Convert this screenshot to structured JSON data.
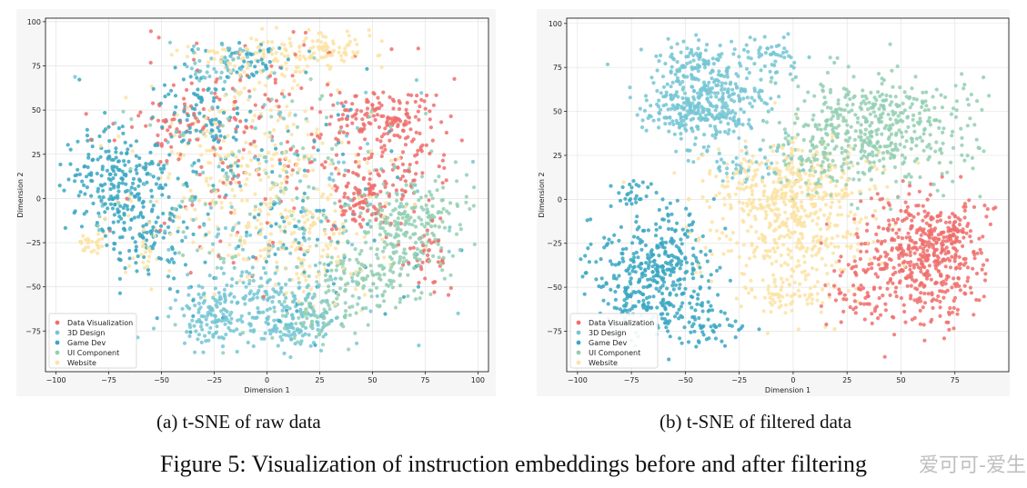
{
  "figure_caption": "Figure 5: Visualization of instruction embeddings before and after filtering",
  "watermark": "爱可可-爱生活",
  "categories": [
    {
      "name": "Data Visualization",
      "color": "#ef6f6c"
    },
    {
      "name": "3D Design",
      "color": "#74c5d3"
    },
    {
      "name": "Game Dev",
      "color": "#3aa7c2"
    },
    {
      "name": "UI Component",
      "color": "#93cfb2"
    },
    {
      "name": "Website",
      "color": "#fbe3a4"
    }
  ],
  "chart_data": [
    {
      "type": "scatter",
      "caption": "(a) t-SNE of raw data",
      "xlabel": "Dimension 1",
      "ylabel": "Dimension 2",
      "xlim": [
        -105,
        105
      ],
      "ylim": [
        -98,
        102
      ],
      "xticks": [
        -100,
        -75,
        -50,
        -25,
        0,
        25,
        50,
        75,
        100
      ],
      "yticks": [
        -75,
        -50,
        -25,
        0,
        25,
        50,
        75,
        100
      ],
      "grid": true,
      "legend": "lower-left",
      "series": [
        {
          "name": "Data Visualization",
          "clusters": [
            {
              "cx": 55,
              "cy": 45,
              "sx": 12,
              "sy": 8,
              "n": 140
            },
            {
              "cx": 45,
              "cy": 0,
              "sx": 8,
              "sy": 10,
              "n": 110
            },
            {
              "cx": 70,
              "cy": 20,
              "sx": 8,
              "sy": 10,
              "n": 50
            },
            {
              "cx": -40,
              "cy": 45,
              "sx": 8,
              "sy": 8,
              "n": 40
            },
            {
              "cx": 0,
              "cy": 35,
              "sx": 35,
              "sy": 35,
              "n": 200
            },
            {
              "cx": 75,
              "cy": -35,
              "sx": 6,
              "sy": 10,
              "n": 40
            }
          ]
        },
        {
          "name": "3D Design",
          "clusters": [
            {
              "cx": 0,
              "cy": -60,
              "sx": 20,
              "sy": 10,
              "n": 200
            },
            {
              "cx": -25,
              "cy": -70,
              "sx": 10,
              "sy": 8,
              "n": 80
            },
            {
              "cx": 15,
              "cy": -75,
              "sx": 8,
              "sy": 6,
              "n": 60
            },
            {
              "cx": -20,
              "cy": 75,
              "sx": 10,
              "sy": 8,
              "n": 50
            },
            {
              "cx": 0,
              "cy": 0,
              "sx": 40,
              "sy": 40,
              "n": 150
            }
          ]
        },
        {
          "name": "Game Dev",
          "clusters": [
            {
              "cx": -70,
              "cy": 10,
              "sx": 14,
              "sy": 14,
              "n": 220
            },
            {
              "cx": -60,
              "cy": -20,
              "sx": 12,
              "sy": 12,
              "n": 100
            },
            {
              "cx": -30,
              "cy": 50,
              "sx": 10,
              "sy": 10,
              "n": 70
            },
            {
              "cx": -10,
              "cy": 80,
              "sx": 8,
              "sy": 6,
              "n": 40
            },
            {
              "cx": 0,
              "cy": 0,
              "sx": 40,
              "sy": 40,
              "n": 150
            }
          ]
        },
        {
          "name": "UI Component",
          "clusters": [
            {
              "cx": 70,
              "cy": -15,
              "sx": 14,
              "sy": 15,
              "n": 230
            },
            {
              "cx": 45,
              "cy": -45,
              "sx": 12,
              "sy": 10,
              "n": 120
            },
            {
              "cx": 25,
              "cy": -65,
              "sx": 10,
              "sy": 8,
              "n": 60
            },
            {
              "cx": 0,
              "cy": 0,
              "sx": 40,
              "sy": 40,
              "n": 150
            }
          ]
        },
        {
          "name": "Website",
          "clusters": [
            {
              "cx": 0,
              "cy": 80,
              "sx": 15,
              "sy": 6,
              "n": 90
            },
            {
              "cx": 30,
              "cy": 85,
              "sx": 10,
              "sy": 5,
              "n": 70
            },
            {
              "cx": -10,
              "cy": 10,
              "sx": 30,
              "sy": 30,
              "n": 300
            },
            {
              "cx": 20,
              "cy": -25,
              "sx": 18,
              "sy": 15,
              "n": 120
            },
            {
              "cx": -85,
              "cy": -25,
              "sx": 3,
              "sy": 3,
              "n": 25
            },
            {
              "cx": -60,
              "cy": -30,
              "sx": 5,
              "sy": 6,
              "n": 20
            }
          ]
        }
      ]
    },
    {
      "type": "scatter",
      "caption": "(b) t-SNE of filtered data",
      "xlabel": "Dimension 1",
      "ylabel": "Dimension 2",
      "xlim": [
        -105,
        100
      ],
      "ylim": [
        -98,
        103
      ],
      "xticks": [
        -100,
        -75,
        -50,
        -25,
        0,
        25,
        50,
        75
      ],
      "yticks": [
        -75,
        -50,
        -25,
        0,
        25,
        50,
        75,
        100
      ],
      "grid": true,
      "legend": "lower-left",
      "series": [
        {
          "name": "Data Visualization",
          "clusters": [
            {
              "cx": 60,
              "cy": -35,
              "sx": 15,
              "sy": 18,
              "n": 450
            },
            {
              "cx": 70,
              "cy": -20,
              "sx": 8,
              "sy": 8,
              "n": 80
            },
            {
              "cx": 30,
              "cy": -50,
              "sx": 8,
              "sy": 12,
              "n": 60
            }
          ]
        },
        {
          "name": "3D Design",
          "clusters": [
            {
              "cx": -40,
              "cy": 55,
              "sx": 14,
              "sy": 12,
              "n": 400
            },
            {
              "cx": -45,
              "cy": 80,
              "sx": 10,
              "sy": 5,
              "n": 70
            },
            {
              "cx": -10,
              "cy": 82,
              "sx": 8,
              "sy": 7,
              "n": 50
            },
            {
              "cx": -20,
              "cy": 20,
              "sx": 10,
              "sy": 5,
              "n": 40
            }
          ]
        },
        {
          "name": "Game Dev",
          "clusters": [
            {
              "cx": -65,
              "cy": -40,
              "sx": 15,
              "sy": 18,
              "n": 420
            },
            {
              "cx": -40,
              "cy": -70,
              "sx": 10,
              "sy": 6,
              "n": 60
            },
            {
              "cx": -75,
              "cy": 5,
              "sx": 4,
              "sy": 4,
              "n": 25
            }
          ]
        },
        {
          "name": "UI Component",
          "clusters": [
            {
              "cx": 40,
              "cy": 40,
              "sx": 22,
              "sy": 15,
              "n": 480
            },
            {
              "cx": 10,
              "cy": 20,
              "sx": 10,
              "sy": 10,
              "n": 50
            }
          ]
        },
        {
          "name": "Website",
          "clusters": [
            {
              "cx": 0,
              "cy": -10,
              "sx": 18,
              "sy": 20,
              "n": 450
            },
            {
              "cx": -5,
              "cy": 10,
              "sx": 22,
              "sy": 12,
              "n": 150
            },
            {
              "cx": 0,
              "cy": -55,
              "sx": 10,
              "sy": 8,
              "n": 60
            }
          ]
        }
      ]
    }
  ]
}
